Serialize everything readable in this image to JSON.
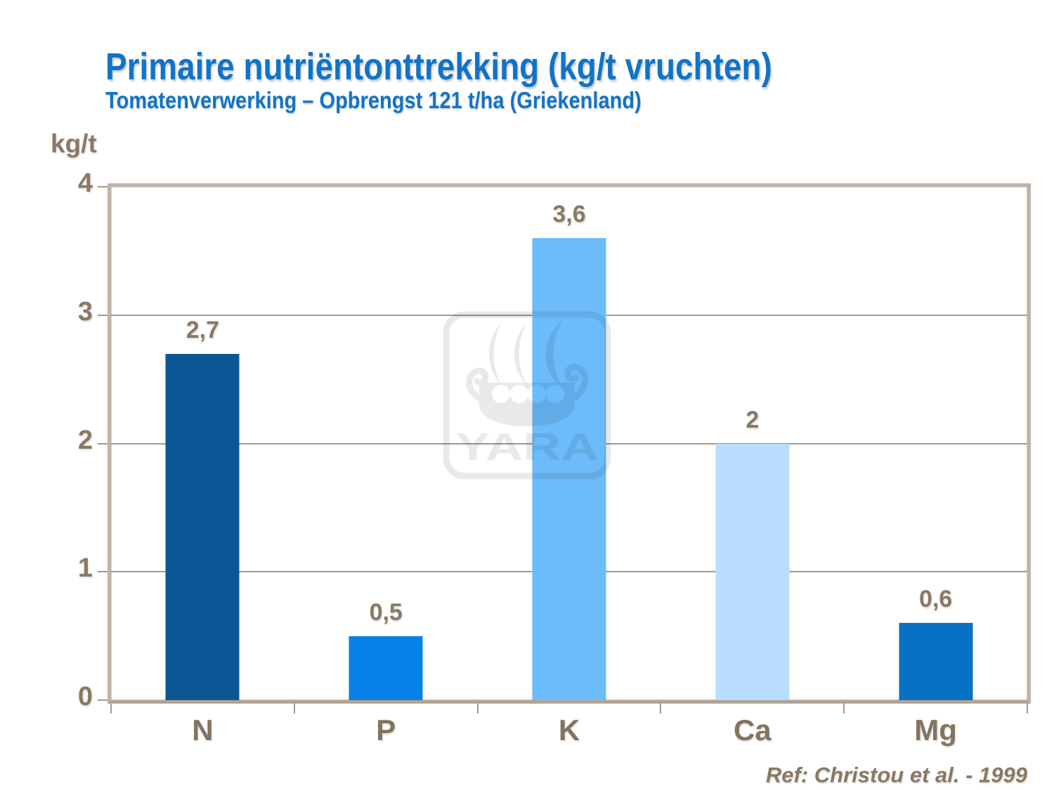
{
  "header": {
    "title": "Primaire nutriëntonttrekking (kg/t vruchten)",
    "subtitle": "Tomatenverwerking – Opbrengst 121 t/ha (Griekenland)"
  },
  "y_axis": {
    "label": "kg/t",
    "tick_labels_top_down": [
      "4",
      "3",
      "2",
      "1",
      "0"
    ]
  },
  "chart_data": {
    "type": "bar",
    "title": "Primaire nutriëntonttrekking (kg/t vruchten)",
    "subtitle": "Tomatenverwerking – Opbrengst 121 t/ha (Griekenland)",
    "categories": [
      "N",
      "P",
      "K",
      "Ca",
      "Mg"
    ],
    "values": [
      2.7,
      0.5,
      3.6,
      2,
      0.6
    ],
    "value_labels": [
      "2,7",
      "0,5",
      "3,6",
      "2",
      "0,6"
    ],
    "bar_colors": [
      "#0B5795",
      "#0781E8",
      "#6CBBFA",
      "#B9DEFD",
      "#0971C3"
    ],
    "xlabel": "",
    "ylabel": "kg/t",
    "ylim": [
      0,
      4
    ],
    "yticks": [
      0,
      1,
      2,
      3,
      4
    ],
    "grid": true,
    "legend": false,
    "source": "Ref: Christou et al. - 1999"
  },
  "watermark": {
    "text": "YARA"
  },
  "footer": {
    "reference": "Ref: Christou et al. - 1999"
  },
  "colors": {
    "title_blue": "#1173C7",
    "axis_text_brown": "#8A7963",
    "frame_beige": "#BFB3A7",
    "axis_line": "#B2A494",
    "gridline": "#A59889",
    "watermark_gray": "#E9E9E9"
  }
}
